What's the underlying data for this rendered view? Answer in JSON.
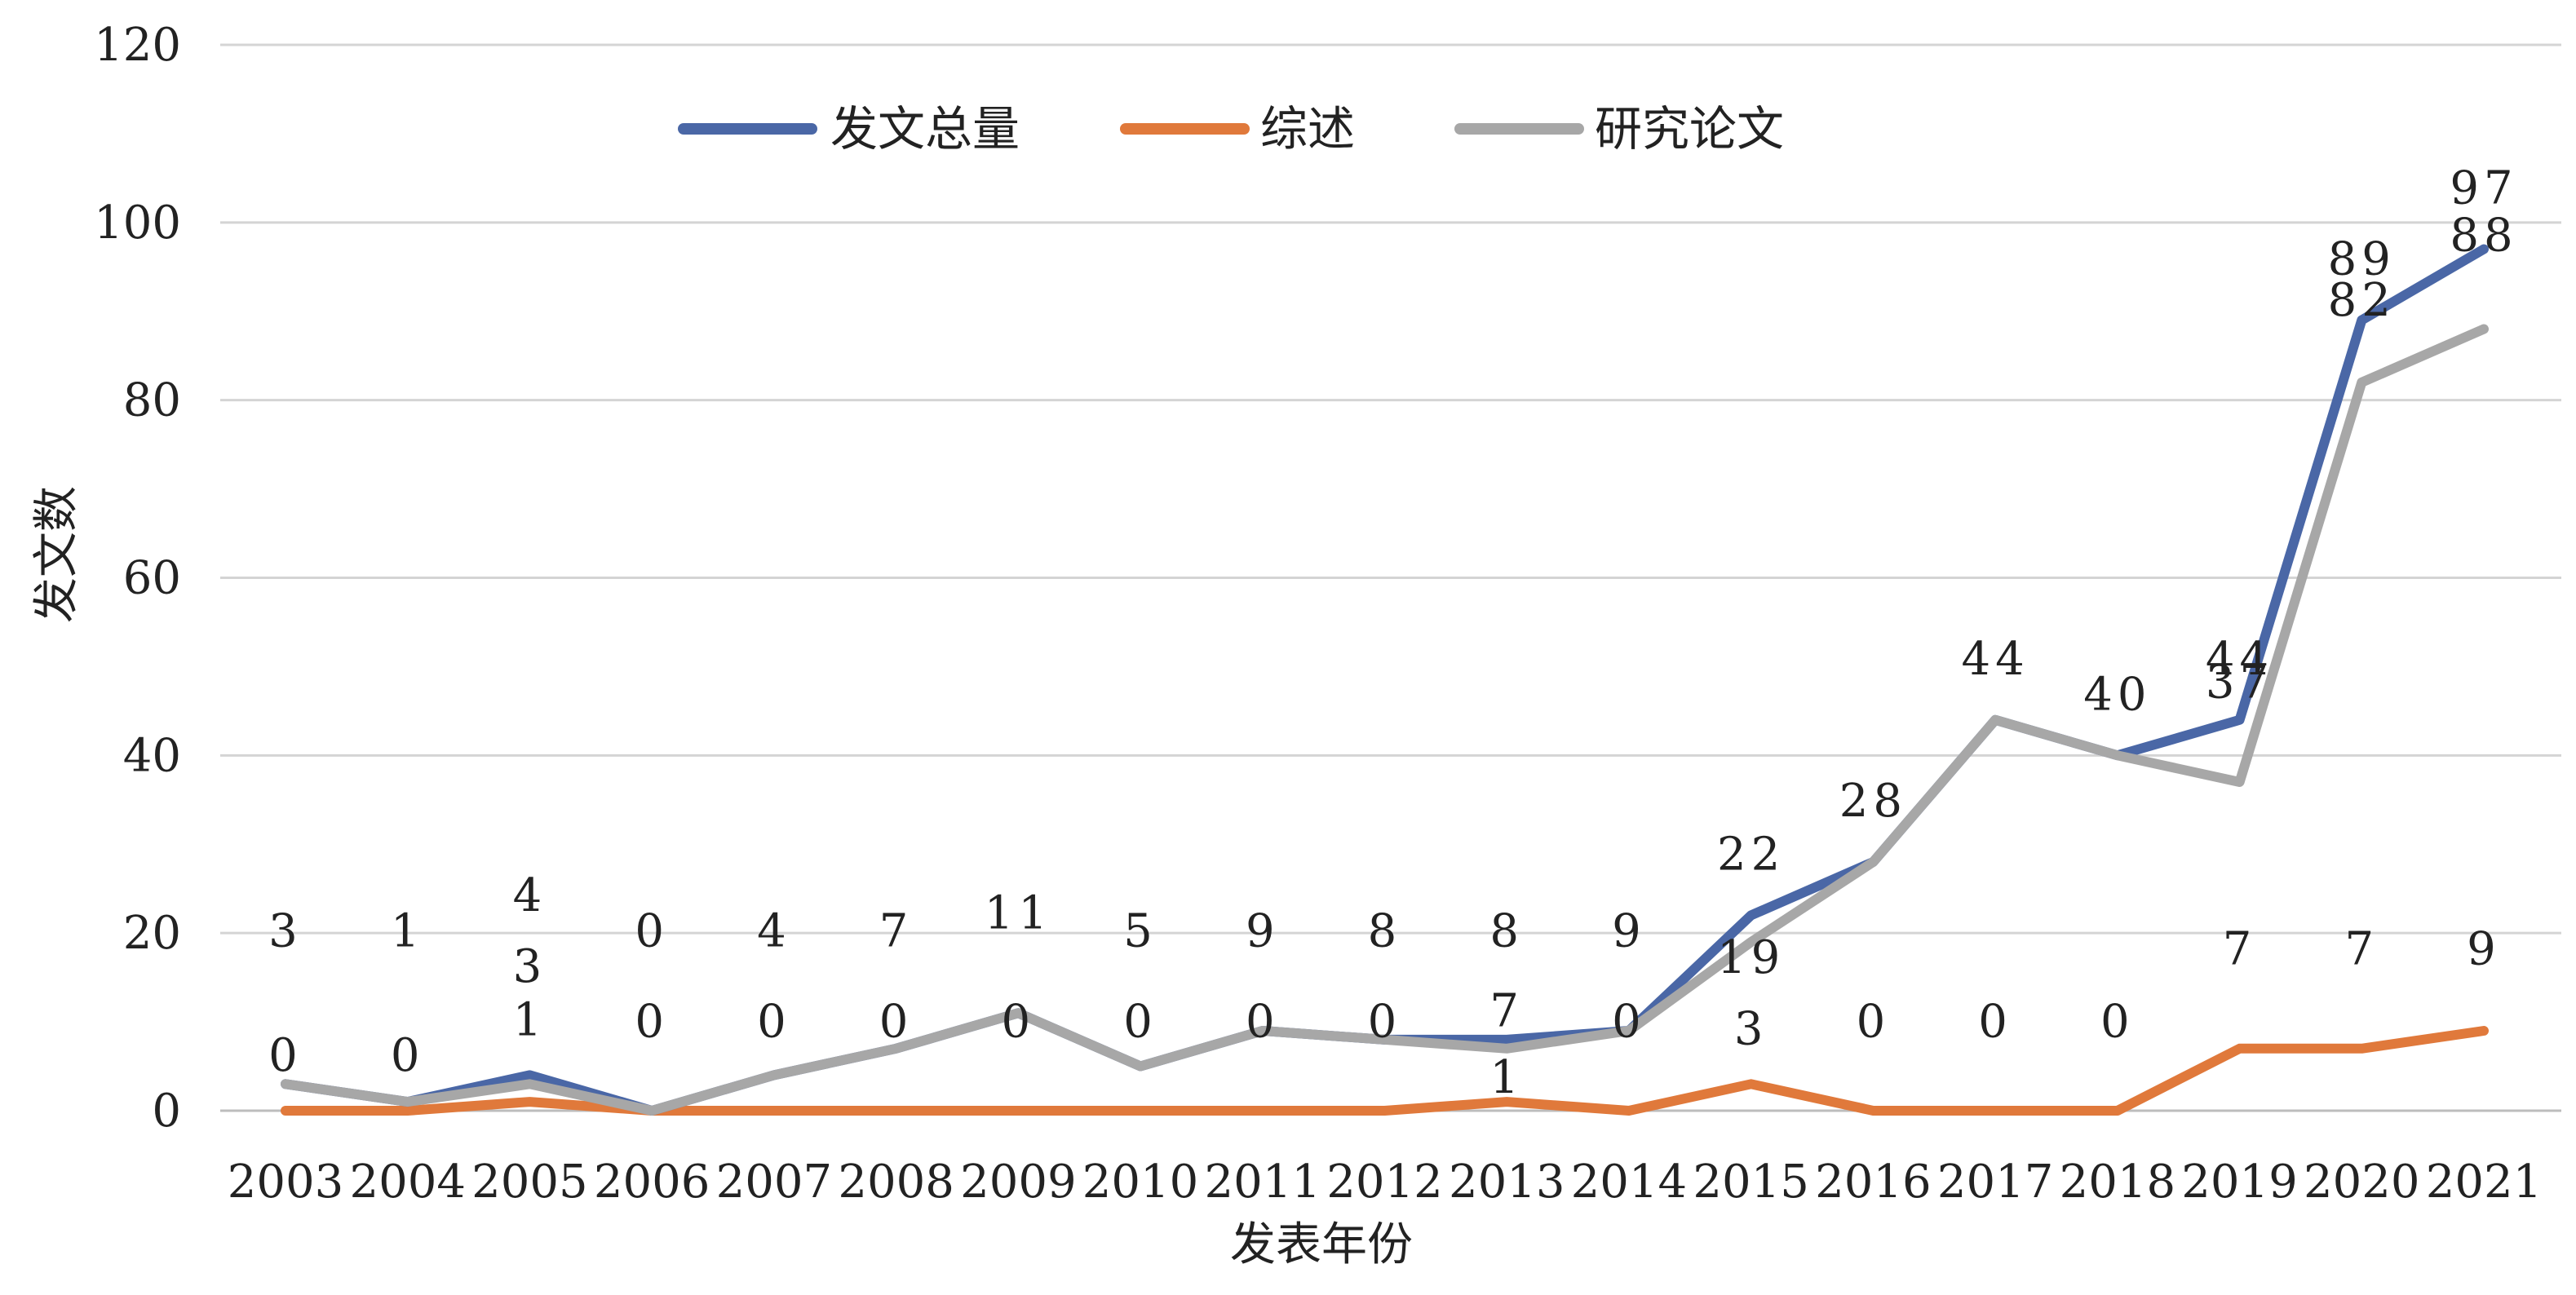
{
  "chart_data": {
    "type": "line",
    "title": "",
    "xlabel": "发表年份",
    "ylabel": "发文数",
    "ylim": [
      0,
      120
    ],
    "yticks": [
      0,
      20,
      40,
      60,
      80,
      100,
      120
    ],
    "grid": true,
    "legend_position": "top",
    "categories": [
      "2003",
      "2004",
      "2005",
      "2006",
      "2007",
      "2008",
      "2009",
      "2010",
      "2011",
      "2012",
      "2013",
      "2014",
      "2015",
      "2016",
      "2017",
      "2018",
      "2019",
      "2020",
      "2021"
    ],
    "series": [
      {
        "name": "发文总量",
        "color": "#4a67a6",
        "values": [
          3,
          1,
          4,
          0,
          4,
          7,
          11,
          5,
          9,
          8,
          8,
          9,
          22,
          28,
          44,
          40,
          44,
          89,
          97
        ]
      },
      {
        "name": "综述",
        "color": "#e0793b",
        "values": [
          0,
          0,
          1,
          0,
          0,
          0,
          0,
          0,
          0,
          0,
          1,
          0,
          3,
          0,
          0,
          0,
          7,
          7,
          9
        ]
      },
      {
        "name": "研究论文",
        "color": "#a7a7a7",
        "values": [
          3,
          1,
          3,
          0,
          4,
          7,
          11,
          5,
          9,
          8,
          7,
          9,
          19,
          28,
          44,
          40,
          37,
          82,
          88
        ]
      }
    ]
  }
}
